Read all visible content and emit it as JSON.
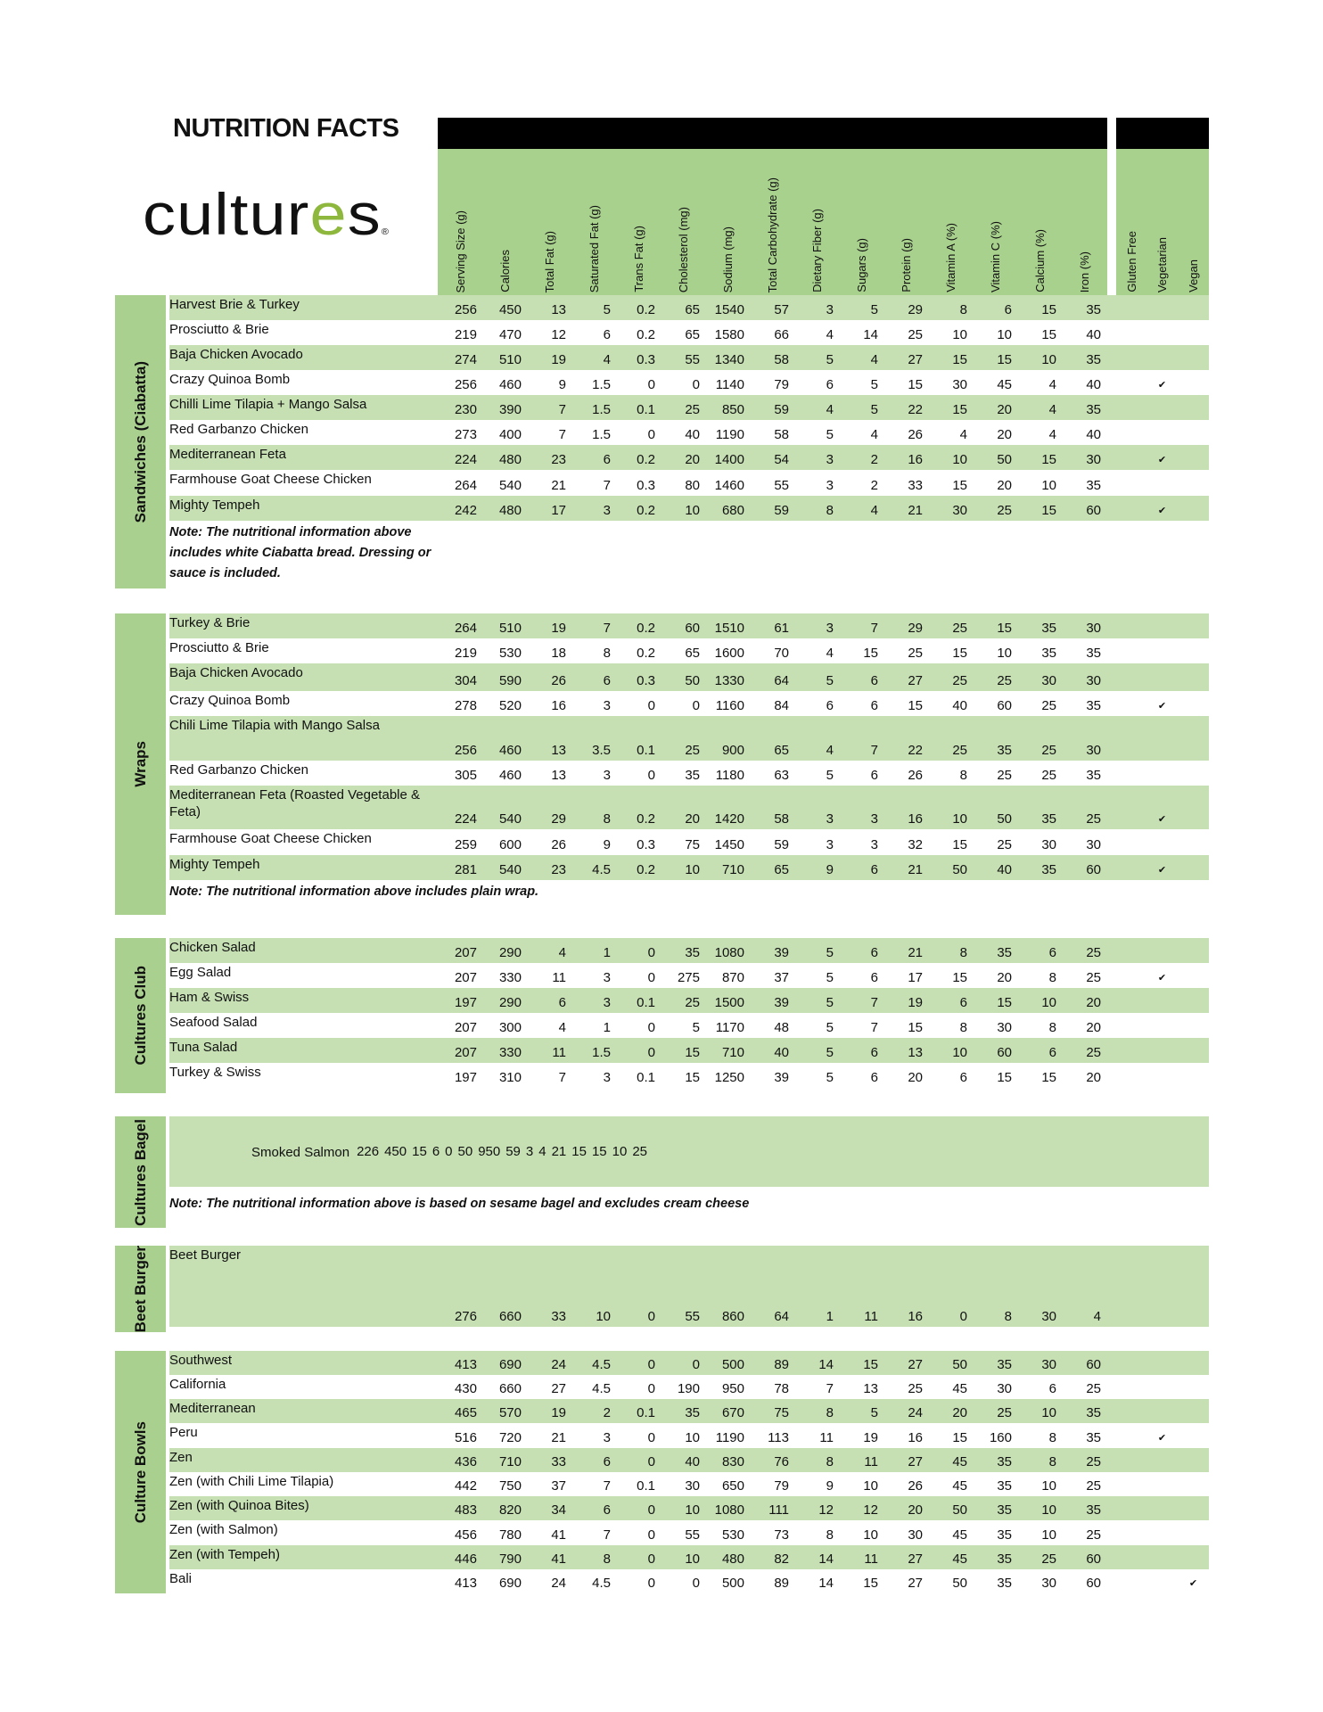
{
  "title": "NUTRITION FACTS",
  "logo": {
    "text": "cultures",
    "parts": [
      "cultur",
      "e",
      "s"
    ],
    "reg": "®",
    "accent_color": "#8db73d"
  },
  "colors": {
    "header_green": "#a9d18e",
    "row_green": "#c6e0b4",
    "label_green": "#a9d08e",
    "bar": "#000000"
  },
  "columns": [
    "Serving Size (g)",
    "Calories",
    "Total Fat (g)",
    "Saturated Fat (g)",
    "Trans Fat (g)",
    "Cholesterol (mg)",
    "Sodium (mg)",
    "Total Carbohydrate (g)",
    "Dietary Fiber (g)",
    "Sugars (g)",
    "Protein (g)",
    "Vitamin A (%)",
    "Vitamin C (%)",
    "Calcium (%)",
    "Iron (%)"
  ],
  "flag_columns": [
    "Gluten Free",
    "Vegetarian",
    "Vegan"
  ],
  "check_icon": "✔",
  "sections": [
    {
      "label": "Sandwiches (Ciabatta)",
      "note": "Note: The nutritional information above includes white Ciabatta bread. Dressing or sauce is included.",
      "rows": [
        {
          "name": "Harvest Brie & Turkey",
          "values": [
            "256",
            "450",
            "13",
            "5",
            "0.2",
            "65",
            "1540",
            "57",
            "3",
            "5",
            "29",
            "8",
            "6",
            "15",
            "35"
          ],
          "flags": [
            false,
            false,
            false
          ]
        },
        {
          "name": "Prosciutto & Brie",
          "values": [
            "219",
            "470",
            "12",
            "6",
            "0.2",
            "65",
            "1580",
            "66",
            "4",
            "14",
            "25",
            "10",
            "10",
            "15",
            "40"
          ],
          "flags": [
            false,
            false,
            false
          ]
        },
        {
          "name": "Baja Chicken Avocado",
          "values": [
            "274",
            "510",
            "19",
            "4",
            "0.3",
            "55",
            "1340",
            "58",
            "5",
            "4",
            "27",
            "15",
            "15",
            "10",
            "35"
          ],
          "flags": [
            false,
            false,
            false
          ]
        },
        {
          "name": "Crazy Quinoa Bomb",
          "values": [
            "256",
            "460",
            "9",
            "1.5",
            "0",
            "0",
            "1140",
            "79",
            "6",
            "5",
            "15",
            "30",
            "45",
            "4",
            "40"
          ],
          "flags": [
            false,
            true,
            false
          ]
        },
        {
          "name": "Chilli Lime Tilapia + Mango Salsa",
          "values": [
            "230",
            "390",
            "7",
            "1.5",
            "0.1",
            "25",
            "850",
            "59",
            "4",
            "5",
            "22",
            "15",
            "20",
            "4",
            "35"
          ],
          "flags": [
            false,
            false,
            false
          ]
        },
        {
          "name": "Red Garbanzo Chicken",
          "values": [
            "273",
            "400",
            "7",
            "1.5",
            "0",
            "40",
            "1190",
            "58",
            "5",
            "4",
            "26",
            "4",
            "20",
            "4",
            "40"
          ],
          "flags": [
            false,
            false,
            false
          ]
        },
        {
          "name": "Mediterranean Feta",
          "values": [
            "224",
            "480",
            "23",
            "6",
            "0.2",
            "20",
            "1400",
            "54",
            "3",
            "2",
            "16",
            "10",
            "50",
            "15",
            "30"
          ],
          "flags": [
            false,
            true,
            false
          ]
        },
        {
          "name": "Farmhouse Goat Cheese Chicken",
          "values": [
            "264",
            "540",
            "21",
            "7",
            "0.3",
            "80",
            "1460",
            "55",
            "3",
            "2",
            "33",
            "15",
            "20",
            "10",
            "35"
          ],
          "flags": [
            false,
            false,
            false
          ]
        },
        {
          "name": "Mighty Tempeh",
          "values": [
            "242",
            "480",
            "17",
            "3",
            "0.2",
            "10",
            "680",
            "59",
            "8",
            "4",
            "21",
            "30",
            "25",
            "15",
            "60"
          ],
          "flags": [
            false,
            true,
            false
          ]
        }
      ]
    },
    {
      "label": "Wraps",
      "note": "Note: The nutritional information above includes plain wrap.",
      "rows": [
        {
          "name": "Turkey & Brie",
          "values": [
            "264",
            "510",
            "19",
            "7",
            "0.2",
            "60",
            "1510",
            "61",
            "3",
            "7",
            "29",
            "25",
            "15",
            "35",
            "30"
          ],
          "flags": [
            false,
            false,
            false
          ]
        },
        {
          "name": "Prosciutto & Brie",
          "values": [
            "219",
            "530",
            "18",
            "8",
            "0.2",
            "65",
            "1600",
            "70",
            "4",
            "15",
            "25",
            "15",
            "10",
            "35",
            "35"
          ],
          "flags": [
            false,
            false,
            false
          ]
        },
        {
          "name": "Baja Chicken Avocado",
          "values": [
            "304",
            "590",
            "26",
            "6",
            "0.3",
            "50",
            "1330",
            "64",
            "5",
            "6",
            "27",
            "25",
            "25",
            "30",
            "30"
          ],
          "flags": [
            false,
            false,
            false
          ]
        },
        {
          "name": "Crazy Quinoa Bomb",
          "values": [
            "278",
            "520",
            "16",
            "3",
            "0",
            "0",
            "1160",
            "84",
            "6",
            "6",
            "15",
            "40",
            "60",
            "25",
            "35"
          ],
          "flags": [
            false,
            true,
            false
          ]
        },
        {
          "name": "Chili Lime Tilapia with Mango Salsa",
          "values": [
            "256",
            "460",
            "13",
            "3.5",
            "0.1",
            "25",
            "900",
            "65",
            "4",
            "7",
            "22",
            "25",
            "35",
            "25",
            "30"
          ],
          "flags": [
            false,
            false,
            false
          ]
        },
        {
          "name": "Red Garbanzo Chicken",
          "values": [
            "305",
            "460",
            "13",
            "3",
            "0",
            "35",
            "1180",
            "63",
            "5",
            "6",
            "26",
            "8",
            "25",
            "25",
            "35"
          ],
          "flags": [
            false,
            false,
            false
          ]
        },
        {
          "name": "Mediterranean Feta (Roasted Vegetable & Feta)",
          "values": [
            "224",
            "540",
            "29",
            "8",
            "0.2",
            "20",
            "1420",
            "58",
            "3",
            "3",
            "16",
            "10",
            "50",
            "35",
            "25"
          ],
          "flags": [
            false,
            true,
            false
          ]
        },
        {
          "name": "Farmhouse Goat Cheese Chicken",
          "values": [
            "259",
            "600",
            "26",
            "9",
            "0.3",
            "75",
            "1450",
            "59",
            "3",
            "3",
            "32",
            "15",
            "25",
            "30",
            "30"
          ],
          "flags": [
            false,
            false,
            false
          ]
        },
        {
          "name": "Mighty Tempeh",
          "values": [
            "281",
            "540",
            "23",
            "4.5",
            "0.2",
            "10",
            "710",
            "65",
            "9",
            "6",
            "21",
            "50",
            "40",
            "35",
            "60"
          ],
          "flags": [
            false,
            true,
            false
          ]
        }
      ]
    },
    {
      "label": "Cultures Club",
      "note": "",
      "rows": [
        {
          "name": "Chicken Salad",
          "values": [
            "207",
            "290",
            "4",
            "1",
            "0",
            "35",
            "1080",
            "39",
            "5",
            "6",
            "21",
            "8",
            "35",
            "6",
            "25"
          ],
          "flags": [
            false,
            false,
            false
          ]
        },
        {
          "name": "Egg Salad",
          "values": [
            "207",
            "330",
            "11",
            "3",
            "0",
            "275",
            "870",
            "37",
            "5",
            "6",
            "17",
            "15",
            "20",
            "8",
            "25"
          ],
          "flags": [
            false,
            true,
            false
          ]
        },
        {
          "name": "Ham & Swiss",
          "values": [
            "197",
            "290",
            "6",
            "3",
            "0.1",
            "25",
            "1500",
            "39",
            "5",
            "7",
            "19",
            "6",
            "15",
            "10",
            "20"
          ],
          "flags": [
            false,
            false,
            false
          ]
        },
        {
          "name": "Seafood Salad",
          "values": [
            "207",
            "300",
            "4",
            "1",
            "0",
            "5",
            "1170",
            "48",
            "5",
            "7",
            "15",
            "8",
            "30",
            "8",
            "20"
          ],
          "flags": [
            false,
            false,
            false
          ]
        },
        {
          "name": "Tuna Salad",
          "values": [
            "207",
            "330",
            "11",
            "1.5",
            "0",
            "15",
            "710",
            "40",
            "5",
            "6",
            "13",
            "10",
            "60",
            "6",
            "25"
          ],
          "flags": [
            false,
            false,
            false
          ]
        },
        {
          "name": "Turkey & Swiss",
          "values": [
            "197",
            "310",
            "7",
            "3",
            "0.1",
            "15",
            "1250",
            "39",
            "5",
            "6",
            "20",
            "6",
            "15",
            "15",
            "20"
          ],
          "flags": [
            false,
            false,
            false
          ]
        }
      ]
    },
    {
      "label": "Cultures Bagel",
      "note": "Note: The nutritional information above is based on sesame bagel and excludes cream cheese",
      "rows": [
        {
          "name": "Smoked Salmon",
          "values": [
            "226",
            "450",
            "15",
            "6",
            "0",
            "50",
            "950",
            "59",
            "3",
            "4",
            "21",
            "15",
            "15",
            "10",
            "25"
          ],
          "flags": [
            false,
            false,
            false
          ]
        }
      ]
    },
    {
      "label": "Beet Burger",
      "note": "",
      "rows": [
        {
          "name": "Beet Burger",
          "values": [
            "276",
            "660",
            "33",
            "10",
            "0",
            "55",
            "860",
            "64",
            "1",
            "11",
            "16",
            "0",
            "8",
            "30",
            "4"
          ],
          "flags": [
            false,
            false,
            false
          ]
        }
      ]
    },
    {
      "label": "Culture Bowls",
      "note": "",
      "rows": [
        {
          "name": "Southwest",
          "values": [
            "413",
            "690",
            "24",
            "4.5",
            "0",
            "0",
            "500",
            "89",
            "14",
            "15",
            "27",
            "50",
            "35",
            "30",
            "60"
          ],
          "flags": [
            false,
            false,
            false
          ]
        },
        {
          "name": "California",
          "values": [
            "430",
            "660",
            "27",
            "4.5",
            "0",
            "190",
            "950",
            "78",
            "7",
            "13",
            "25",
            "45",
            "30",
            "6",
            "25"
          ],
          "flags": [
            false,
            false,
            false
          ]
        },
        {
          "name": "Mediterranean",
          "values": [
            "465",
            "570",
            "19",
            "2",
            "0.1",
            "35",
            "670",
            "75",
            "8",
            "5",
            "24",
            "20",
            "25",
            "10",
            "35"
          ],
          "flags": [
            false,
            false,
            false
          ]
        },
        {
          "name": "Peru",
          "values": [
            "516",
            "720",
            "21",
            "3",
            "0",
            "10",
            "1190",
            "113",
            "11",
            "19",
            "16",
            "15",
            "160",
            "8",
            "35"
          ],
          "flags": [
            false,
            true,
            false
          ]
        },
        {
          "name": "Zen",
          "values": [
            "436",
            "710",
            "33",
            "6",
            "0",
            "40",
            "830",
            "76",
            "8",
            "11",
            "27",
            "45",
            "35",
            "8",
            "25"
          ],
          "flags": [
            false,
            false,
            false
          ]
        },
        {
          "name": "Zen (with Chili Lime Tilapia)",
          "values": [
            "442",
            "750",
            "37",
            "7",
            "0.1",
            "30",
            "650",
            "79",
            "9",
            "10",
            "26",
            "45",
            "35",
            "10",
            "25"
          ],
          "flags": [
            false,
            false,
            false
          ]
        },
        {
          "name": "Zen (with Quinoa Bites)",
          "values": [
            "483",
            "820",
            "34",
            "6",
            "0",
            "10",
            "1080",
            "111",
            "12",
            "12",
            "20",
            "50",
            "35",
            "10",
            "35"
          ],
          "flags": [
            false,
            false,
            false
          ]
        },
        {
          "name": "Zen (with Salmon)",
          "values": [
            "456",
            "780",
            "41",
            "7",
            "0",
            "55",
            "530",
            "73",
            "8",
            "10",
            "30",
            "45",
            "35",
            "10",
            "25"
          ],
          "flags": [
            false,
            false,
            false
          ]
        },
        {
          "name": "Zen (with Tempeh)",
          "values": [
            "446",
            "790",
            "41",
            "8",
            "0",
            "10",
            "480",
            "82",
            "14",
            "11",
            "27",
            "45",
            "35",
            "25",
            "60"
          ],
          "flags": [
            false,
            false,
            false
          ]
        },
        {
          "name": "Bali",
          "values": [
            "413",
            "690",
            "24",
            "4.5",
            "0",
            "0",
            "500",
            "89",
            "14",
            "15",
            "27",
            "50",
            "35",
            "30",
            "60"
          ],
          "flags": [
            false,
            false,
            true
          ]
        }
      ]
    }
  ]
}
